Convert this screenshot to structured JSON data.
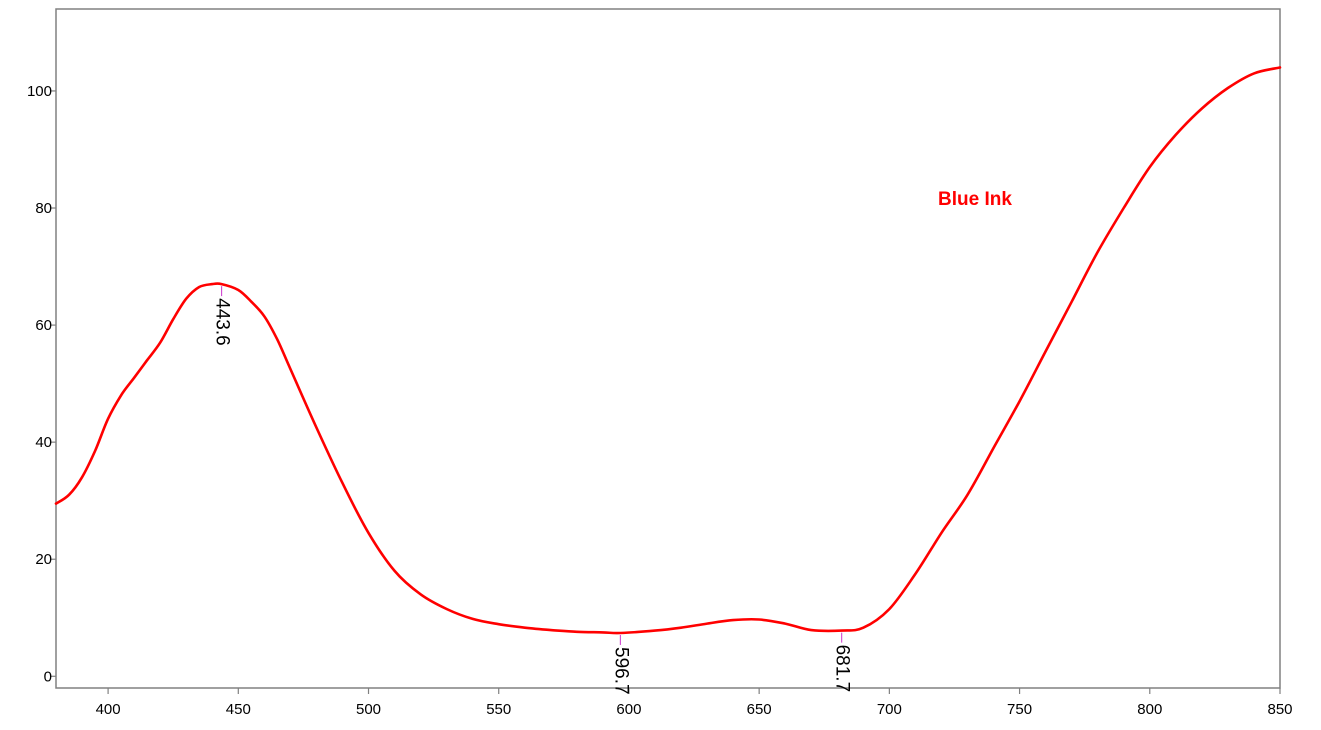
{
  "chart_data": {
    "type": "line",
    "title": "",
    "xlabel": "",
    "ylabel": "",
    "xlim": [
      380,
      850
    ],
    "ylim": [
      -2,
      114
    ],
    "grid": false,
    "x_ticks": [
      400,
      450,
      500,
      550,
      600,
      650,
      700,
      750,
      800,
      850
    ],
    "x_tick_labels": [
      "400",
      "450",
      "500",
      "550",
      "600",
      "650",
      "700",
      "750",
      "800",
      "850"
    ],
    "y_ticks": [
      0,
      20,
      40,
      60,
      80,
      100
    ],
    "y_tick_labels": [
      "0",
      "20",
      "40",
      "60",
      "80",
      "100"
    ],
    "series": [
      {
        "name": "Blue Ink",
        "color": "#ff0000",
        "x": [
          380,
          385,
          390,
          395,
          400,
          405,
          410,
          415,
          420,
          425,
          430,
          435,
          440,
          443.6,
          450,
          455,
          460,
          465,
          470,
          480,
          490,
          500,
          510,
          520,
          530,
          540,
          550,
          560,
          570,
          580,
          590,
          596.7,
          610,
          620,
          630,
          640,
          650,
          660,
          670,
          681.7,
          690,
          700,
          710,
          720,
          730,
          740,
          750,
          760,
          770,
          780,
          790,
          800,
          810,
          820,
          830,
          840,
          850
        ],
        "y": [
          29.5,
          31,
          34,
          38.5,
          44,
          48,
          51,
          54,
          57,
          61,
          64.5,
          66.5,
          67,
          67,
          66,
          64,
          61.5,
          57.5,
          52.5,
          42.5,
          33,
          24.5,
          18,
          14,
          11.5,
          9.8,
          8.9,
          8.3,
          7.9,
          7.6,
          7.5,
          7.4,
          7.8,
          8.3,
          9,
          9.6,
          9.7,
          9,
          7.9,
          7.8,
          8.3,
          11.5,
          17.5,
          24.5,
          31,
          39,
          47,
          55.5,
          64,
          72.5,
          80,
          87,
          92.5,
          97,
          100.5,
          103,
          104
        ]
      }
    ],
    "series_label": "Blue Ink",
    "peak_labels": [
      {
        "x": 443.6,
        "text": "443.6"
      },
      {
        "x": 596.7,
        "text": "596.7"
      },
      {
        "x": 681.7,
        "text": "681.7"
      }
    ]
  }
}
